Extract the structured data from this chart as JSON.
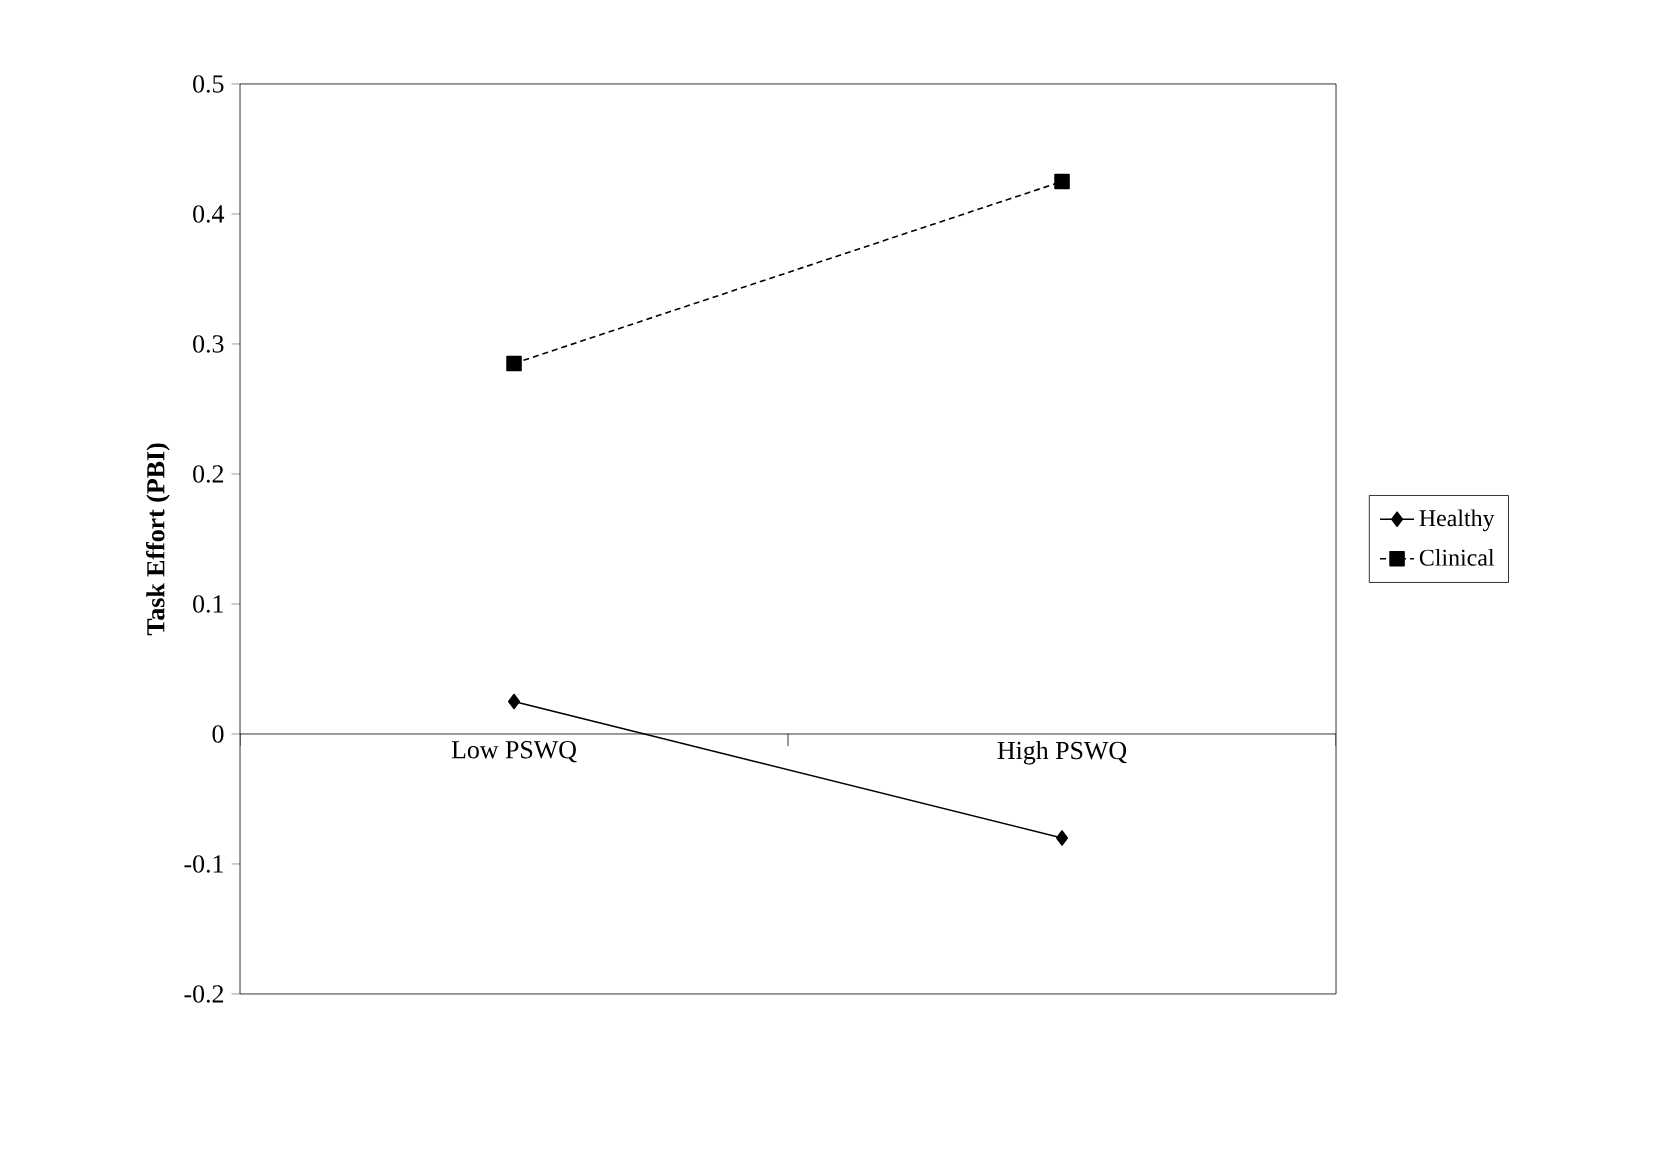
{
  "chart_data": {
    "type": "line",
    "ylabel": "Task Effort (PBI)",
    "categories": [
      "Low PSWQ",
      "High PSWQ"
    ],
    "series": [
      {
        "name": "Healthy",
        "color": "#000000",
        "values": [
          0.025,
          -0.08
        ],
        "marker": "diamond",
        "line_style": "solid"
      },
      {
        "name": "Clinical",
        "color": "#000000",
        "values": [
          0.285,
          0.425
        ],
        "marker": "square",
        "line_style": "dashed"
      }
    ],
    "ylim": [
      -0.2,
      0.5
    ],
    "yticks": [
      -0.2,
      -0.1,
      0,
      0.1,
      0.2,
      0.3,
      0.4,
      0.5
    ],
    "legend": "right",
    "grid": false
  }
}
